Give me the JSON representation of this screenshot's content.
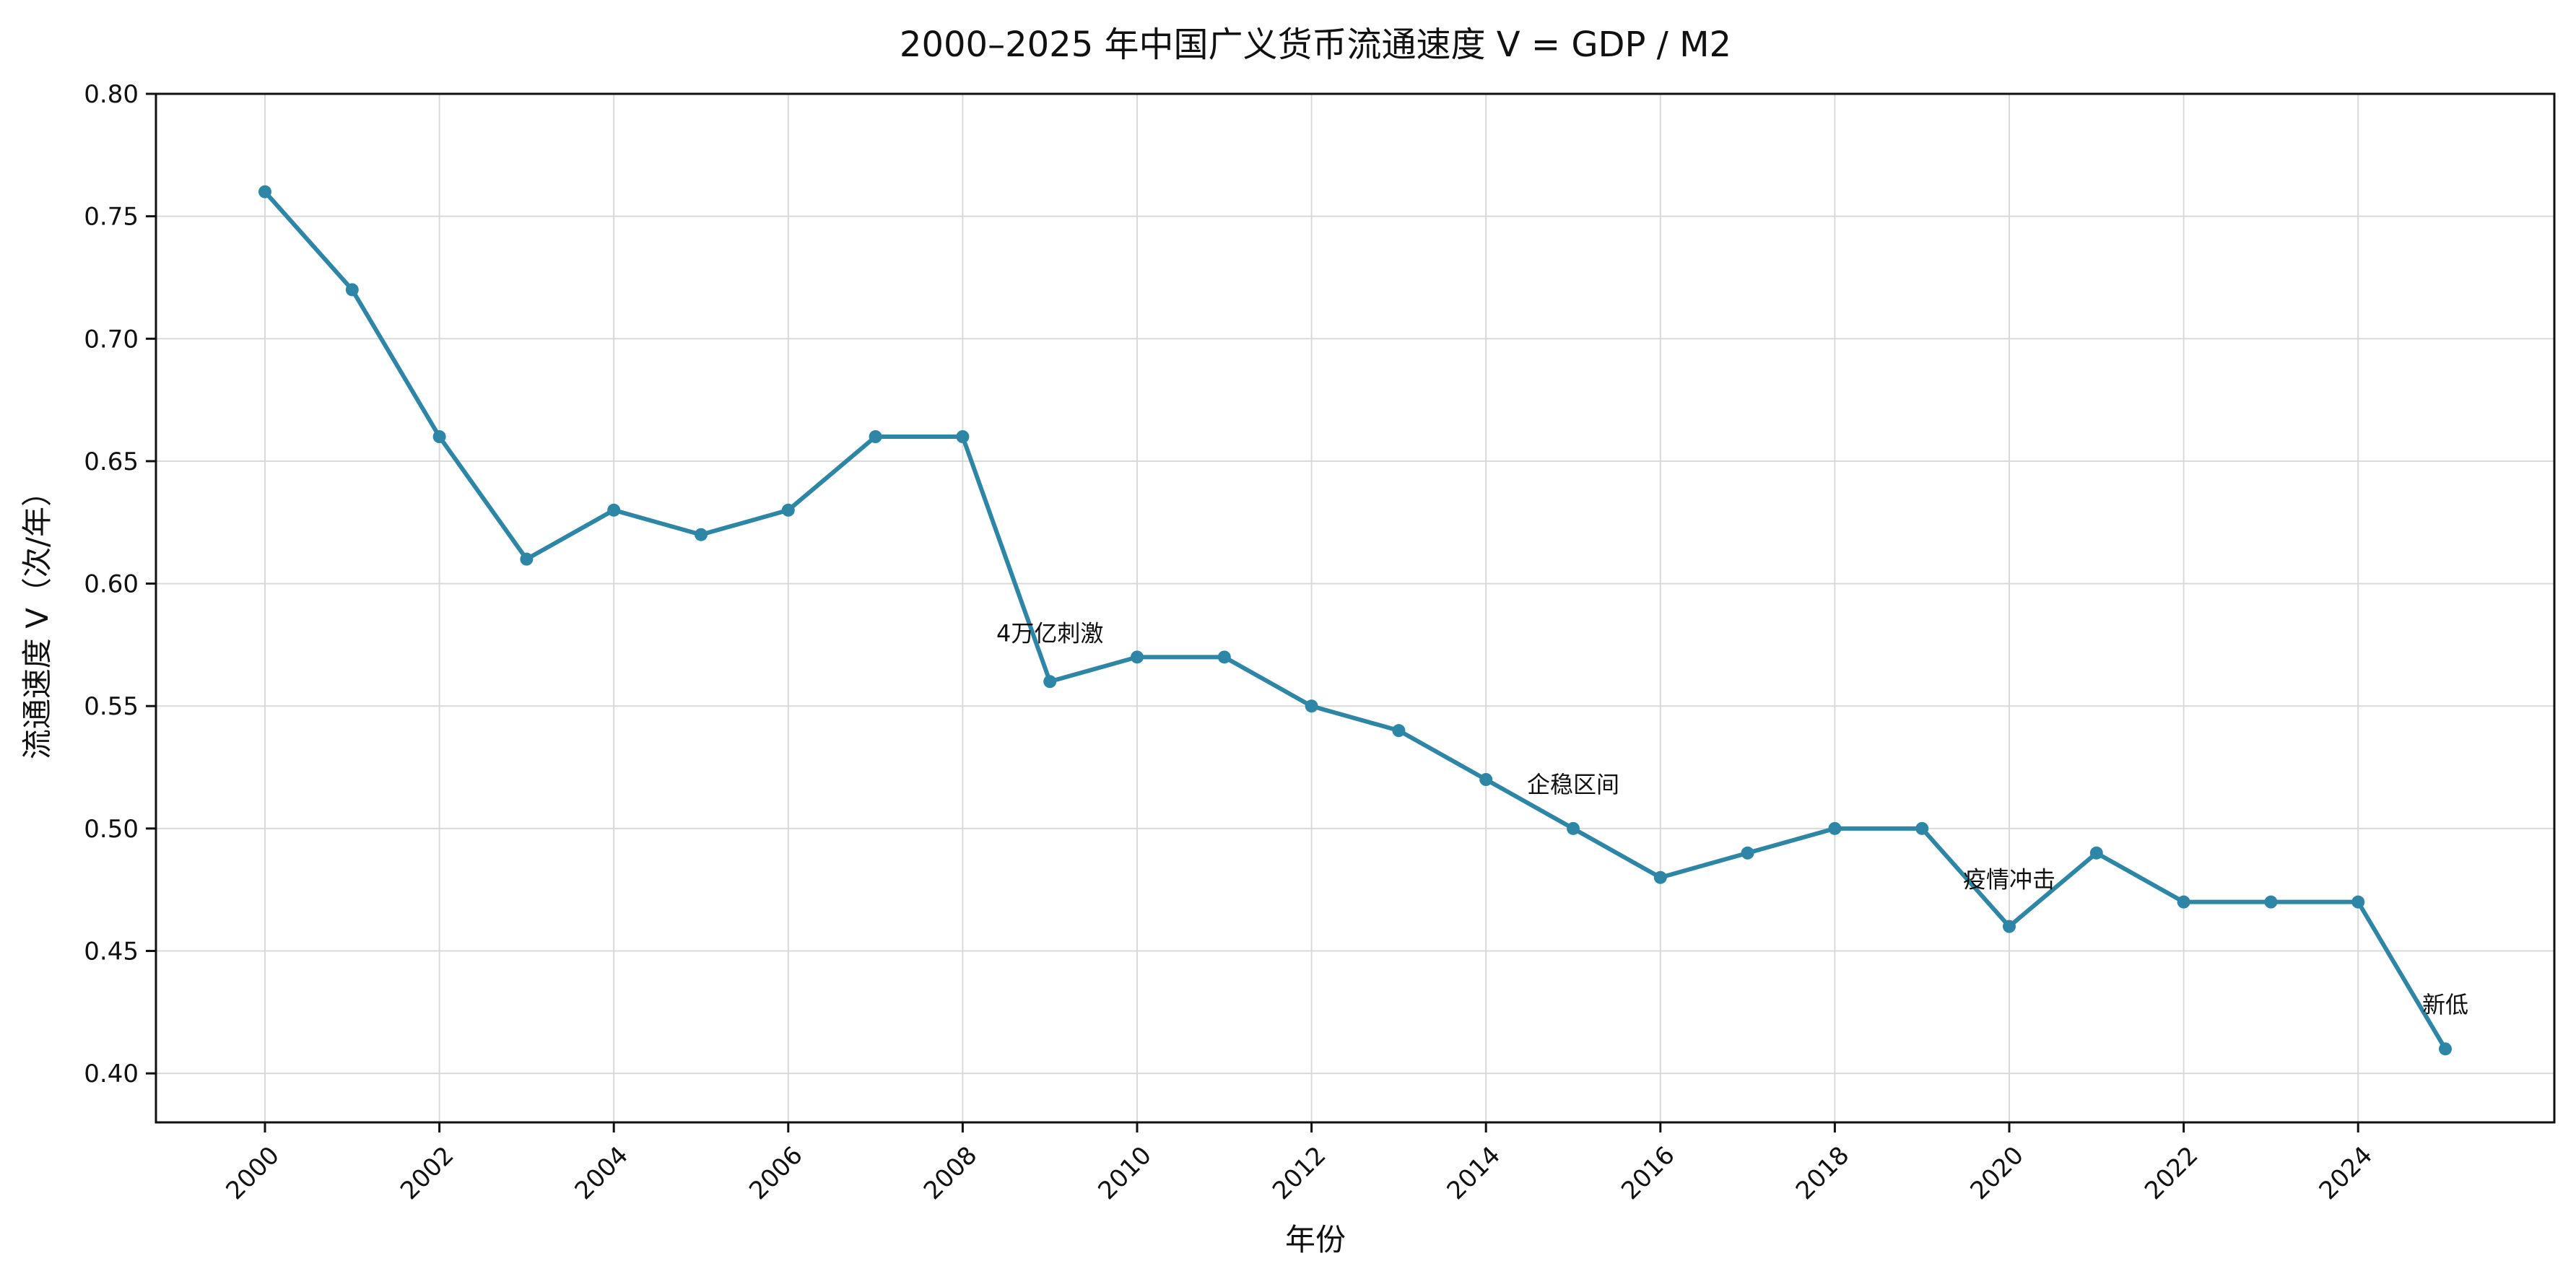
{
  "chart_data": {
    "type": "line",
    "title": "2000–2025 年中国广义货币流通速度 V = GDP / M2",
    "xlabel": "年份",
    "ylabel": "流通速度 V（次/年）",
    "x": [
      2000,
      2001,
      2002,
      2003,
      2004,
      2005,
      2006,
      2007,
      2008,
      2009,
      2010,
      2011,
      2012,
      2013,
      2014,
      2015,
      2016,
      2017,
      2018,
      2019,
      2020,
      2021,
      2022,
      2023,
      2024,
      2025
    ],
    "series": [
      {
        "values": [
          0.76,
          0.72,
          0.66,
          0.61,
          0.63,
          0.62,
          0.63,
          0.66,
          0.66,
          0.56,
          0.57,
          0.57,
          0.55,
          0.54,
          0.52,
          0.5,
          0.48,
          0.49,
          0.5,
          0.5,
          0.46,
          0.49,
          0.47,
          0.47,
          0.47,
          0.41
        ],
        "color": "#2e86a6"
      }
    ],
    "xlim": [
      1998.75,
      2026.25
    ],
    "ylim": [
      0.38,
      0.8
    ],
    "xticks": [
      2000,
      2002,
      2004,
      2006,
      2008,
      2010,
      2012,
      2014,
      2016,
      2018,
      2020,
      2022,
      2024
    ],
    "xtick_labels": [
      "2000",
      "2002",
      "2004",
      "2006",
      "2008",
      "2010",
      "2012",
      "2014",
      "2016",
      "2018",
      "2020",
      "2022",
      "2024"
    ],
    "yticks": [
      0.4,
      0.45,
      0.5,
      0.55,
      0.6,
      0.65,
      0.7,
      0.75,
      0.8
    ],
    "ytick_labels": [
      "0.40",
      "0.45",
      "0.50",
      "0.55",
      "0.60",
      "0.65",
      "0.70",
      "0.75",
      "0.80"
    ],
    "grid": true,
    "annotations": [
      {
        "text": "4万亿刺激",
        "x": 2009,
        "y": 0.56
      },
      {
        "text": "企稳区间",
        "x": 2015,
        "y": 0.5
      },
      {
        "text": "疫情冲击",
        "x": 2020,
        "y": 0.46
      },
      {
        "text": "新低",
        "x": 2025,
        "y": 0.41
      }
    ]
  }
}
